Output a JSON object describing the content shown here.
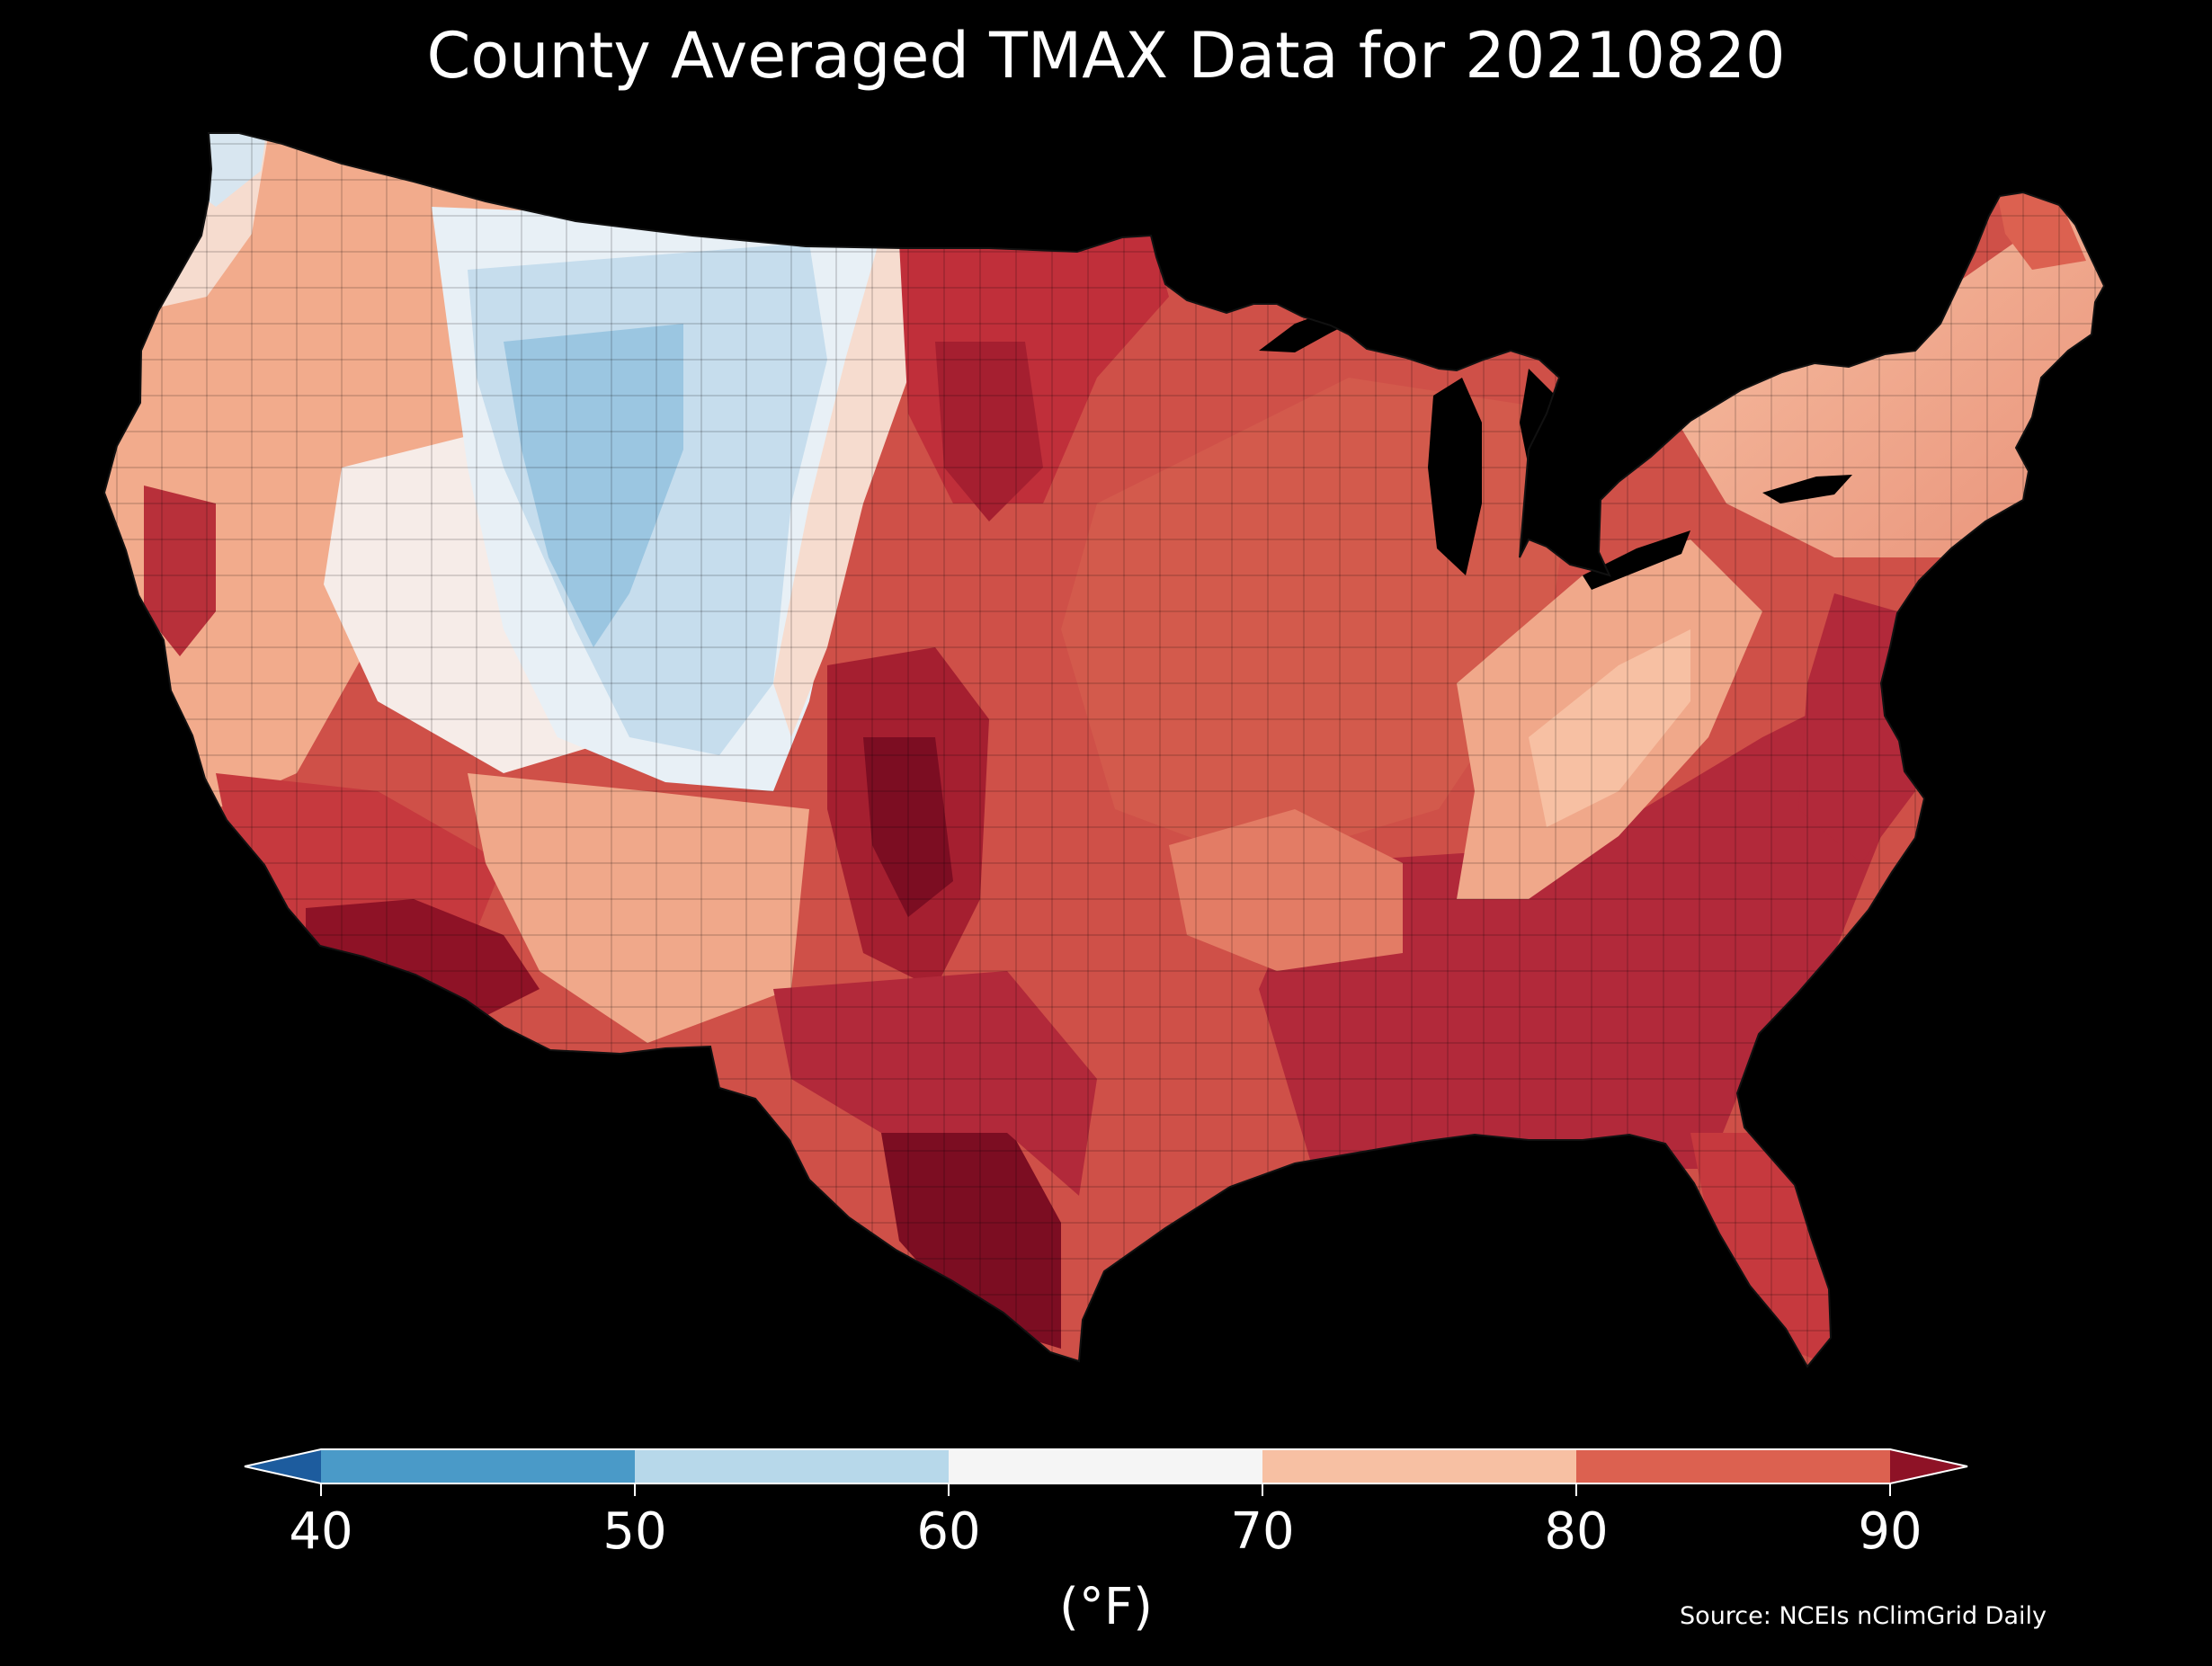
{
  "title": "County Averaged TMAX Data for 20210820",
  "colorbar": {
    "unit": "(°F)",
    "ticks": [
      "40",
      "50",
      "60",
      "70",
      "80",
      "90"
    ],
    "bins": [
      {
        "range": "<40",
        "color": "#1d5c9e"
      },
      {
        "range": "40-50",
        "color": "#4a9ac8"
      },
      {
        "range": "50-60",
        "color": "#b7d8ea"
      },
      {
        "range": "60-70",
        "color": "#f5f5f5"
      },
      {
        "range": "70-80",
        "color": "#f7c0a3"
      },
      {
        "range": "80-90",
        "color": "#dc6150"
      },
      {
        "range": ">90",
        "color": "#8e1226"
      }
    ]
  },
  "source": "Source: NCEIs nClimGrid Daily",
  "map_regions": [
    {
      "area": "Pacific Northwest coast",
      "range": "60-70"
    },
    {
      "area": "Interior Washington and Oregon",
      "range": "70-80"
    },
    {
      "area": "Central California valley",
      "range": "80-90"
    },
    {
      "area": "Great Basin (Nevada, Utah)",
      "range": "60-70"
    },
    {
      "area": "Montana, Wyoming and Colorado Rockies",
      "range": "50-60"
    },
    {
      "area": "Northern and central plains (Dakotas, Nebraska)",
      "range": "80-90"
    },
    {
      "area": "Texas panhandle and southwest Oklahoma",
      "range": ">90"
    },
    {
      "area": "Desert southwest (southern Arizona, Imperial Valley)",
      "range": ">90"
    },
    {
      "area": "Appalachians",
      "range": "70-80"
    },
    {
      "area": "New England",
      "range": "70-80"
    },
    {
      "area": "Southeast and Gulf Coast",
      "range": "80-90"
    },
    {
      "area": "South Texas",
      "range": ">90"
    }
  ]
}
